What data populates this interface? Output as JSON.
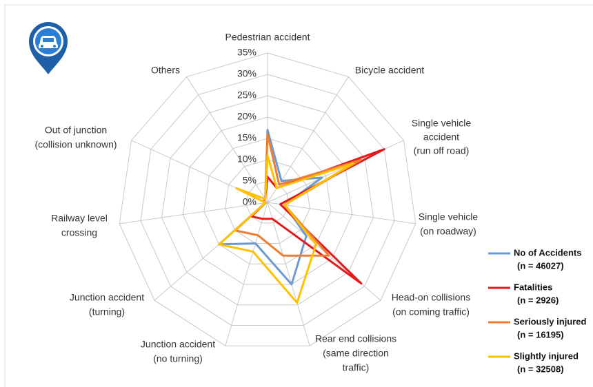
{
  "chart_data": {
    "type": "radar",
    "categories": [
      [
        "Pedestrian accident"
      ],
      [
        "Bicycle accident"
      ],
      [
        "Single vehicle",
        "accident",
        "(run off road)"
      ],
      [
        "Single vehicle",
        "(on roadway)"
      ],
      [
        "Head-on collisions",
        "(on coming traffic)"
      ],
      [
        "Rear end collisions",
        "(same direction",
        "traffic)"
      ],
      [
        "Junction accident",
        "(no turning)"
      ],
      [
        "Junction accident",
        "(turning)"
      ],
      [
        "Railway level",
        "crossing"
      ],
      [
        "Out of junction",
        "(collision unknown)"
      ],
      [
        "Others"
      ]
    ],
    "rlim": [
      0,
      35
    ],
    "rticks": [
      {
        "value": 0,
        "label": "0%"
      },
      {
        "value": 5,
        "label": "5%"
      },
      {
        "value": 10,
        "label": "10%"
      },
      {
        "value": 15,
        "label": "15%"
      },
      {
        "value": 20,
        "label": "20%"
      },
      {
        "value": 25,
        "label": "25%"
      },
      {
        "value": 30,
        "label": "30%"
      },
      {
        "value": 35,
        "label": "35%"
      }
    ],
    "grid": true,
    "legend": "right",
    "series": [
      {
        "name": "No of Accidents",
        "note": "(n = 46027)",
        "color": "#6b9bd2",
        "values": [
          17,
          6,
          14,
          4,
          12,
          20,
          10,
          15,
          0.5,
          1,
          1
        ]
      },
      {
        "name": "Fatalities",
        "note": "(n = 2926)",
        "color": "#e3191c",
        "values": [
          6,
          4,
          30,
          3,
          29,
          4,
          4,
          5,
          0.5,
          1,
          1
        ]
      },
      {
        "name": "Seriously injured",
        "note": "(n = 16195)",
        "color": "#ed7d31",
        "values": [
          16,
          5,
          24,
          4,
          19,
          13,
          8,
          10,
          0.5,
          1,
          1
        ]
      },
      {
        "name": "Slightly injured",
        "note": "(n = 32508)",
        "color": "#ffc000",
        "values": [
          11,
          4,
          22,
          4,
          15,
          24.5,
          12,
          15,
          0.5,
          8,
          1
        ]
      }
    ]
  }
}
